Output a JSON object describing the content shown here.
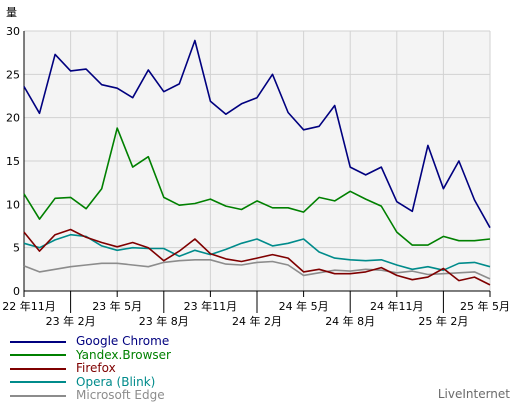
{
  "chart_data": {
    "type": "line",
    "ylabel": "量",
    "ylim": [
      0,
      30
    ],
    "yticks": [
      0,
      5,
      10,
      15,
      20,
      25,
      30
    ],
    "grid": true,
    "legend_position": "bottom-left",
    "x": [
      "22-11",
      "22-12",
      "23-01",
      "23-02",
      "23-03",
      "23-04",
      "23-05",
      "23-06",
      "23-07",
      "23-08",
      "23-09",
      "23-10",
      "23-11",
      "23-12",
      "24-01",
      "24-02",
      "24-03",
      "24-04",
      "24-05",
      "24-06",
      "24-07",
      "24-08",
      "24-09",
      "24-10",
      "24-11",
      "24-12",
      "25-01",
      "25-02",
      "25-03",
      "25-04",
      "25-05"
    ],
    "xtick_labels": [
      {
        "index": 0,
        "label": "22 年11月",
        "row": 0
      },
      {
        "index": 3,
        "label": "23 年 2月",
        "row": 1
      },
      {
        "index": 6,
        "label": "23 年 5月",
        "row": 0
      },
      {
        "index": 9,
        "label": "23 年 8月",
        "row": 1
      },
      {
        "index": 12,
        "label": "23 年11月",
        "row": 0
      },
      {
        "index": 15,
        "label": "24 年 2月",
        "row": 1
      },
      {
        "index": 18,
        "label": "24 年 5月",
        "row": 0
      },
      {
        "index": 21,
        "label": "24 年 8月",
        "row": 1
      },
      {
        "index": 24,
        "label": "24 年11月",
        "row": 0
      },
      {
        "index": 27,
        "label": "25 年 2月",
        "row": 1
      },
      {
        "index": 30,
        "label": "25 年 5月",
        "row": 0
      }
    ],
    "series": [
      {
        "name": "Google Chrome",
        "color": "#00007f",
        "values": [
          23.6,
          20.5,
          27.3,
          25.4,
          25.6,
          23.8,
          23.4,
          22.3,
          25.5,
          23.0,
          23.9,
          28.9,
          21.9,
          20.4,
          21.6,
          22.3,
          25.0,
          20.6,
          18.6,
          19.0,
          21.4,
          14.3,
          13.4,
          14.3,
          10.3,
          9.2,
          16.8,
          11.8,
          15.0,
          10.5,
          7.3
        ]
      },
      {
        "name": "Yandex.Browser",
        "color": "#008000",
        "values": [
          11.2,
          8.3,
          10.7,
          10.8,
          9.5,
          11.8,
          18.8,
          14.3,
          15.5,
          10.8,
          9.9,
          10.1,
          10.6,
          9.8,
          9.4,
          10.4,
          9.6,
          9.6,
          9.1,
          10.8,
          10.4,
          11.5,
          10.6,
          9.8,
          6.8,
          5.3,
          5.3,
          6.3,
          5.8,
          5.8,
          6.0
        ]
      },
      {
        "name": "Firefox",
        "color": "#7f0000",
        "values": [
          6.8,
          4.6,
          6.5,
          7.1,
          6.2,
          5.6,
          5.1,
          5.6,
          5.0,
          3.5,
          4.6,
          6.0,
          4.3,
          3.7,
          3.4,
          3.8,
          4.2,
          3.8,
          2.2,
          2.5,
          2.0,
          2.0,
          2.2,
          2.7,
          1.8,
          1.3,
          1.6,
          2.6,
          1.2,
          1.6,
          0.7
        ]
      },
      {
        "name": "Opera (Blink)",
        "color": "#008b8b",
        "values": [
          5.5,
          5.0,
          5.9,
          6.5,
          6.3,
          5.2,
          4.7,
          5.0,
          4.9,
          4.9,
          4.0,
          4.7,
          4.2,
          4.8,
          5.5,
          6.0,
          5.2,
          5.5,
          6.0,
          4.5,
          3.8,
          3.6,
          3.5,
          3.6,
          3.0,
          2.5,
          2.8,
          2.4,
          3.2,
          3.3,
          2.8
        ]
      },
      {
        "name": "Microsoft Edge",
        "color": "#8c8c8c",
        "values": [
          2.9,
          2.2,
          2.5,
          2.8,
          3.0,
          3.2,
          3.2,
          3.0,
          2.8,
          3.3,
          3.5,
          3.6,
          3.6,
          3.1,
          3.0,
          3.3,
          3.4,
          3.0,
          1.8,
          2.1,
          2.4,
          2.3,
          2.5,
          2.4,
          2.1,
          2.3,
          1.9,
          2.0,
          2.1,
          2.2,
          1.4
        ]
      }
    ],
    "source_label": "LiveInternet"
  }
}
